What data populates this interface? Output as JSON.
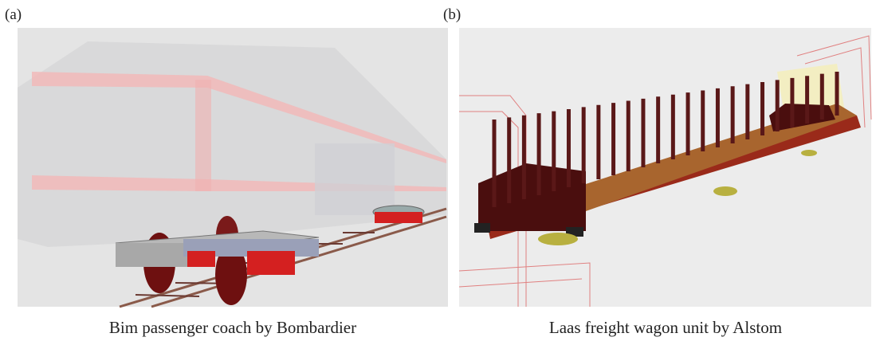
{
  "panels": [
    {
      "label": "(a)",
      "caption": "Bim passenger coach by Bombardier"
    },
    {
      "label": "(b)",
      "caption": "Laas freight wagon unit by Alstom"
    }
  ]
}
